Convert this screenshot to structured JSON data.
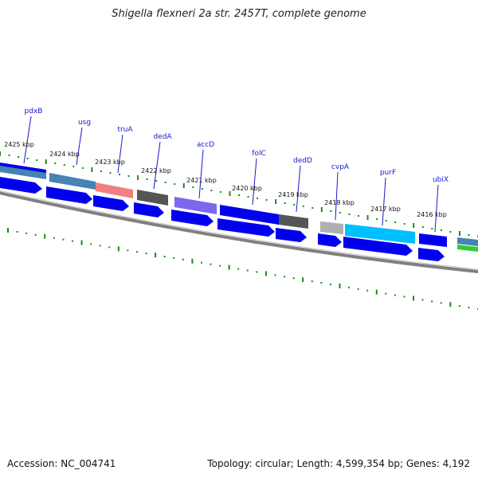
{
  "title": "Shigella flexneri 2a str. 2457T, complete genome",
  "footer": {
    "accession": "Accession: NC_004741",
    "summary": "Topology: circular; Length: 4,599,354 bp; Genes: 4,192"
  },
  "colors": {
    "cds": "#0000ee",
    "tick": "#1a8a1a",
    "backbone": "#808080",
    "label": "#1a1acc"
  },
  "kbp_labels": [
    "2425 kbp",
    "2424 kbp",
    "2423 kbp",
    "2422 kbp",
    "2421 kbp",
    "2420 kbp",
    "2419 kbp",
    "2418 kbp",
    "2417 kbp",
    "2416 kbp"
  ],
  "genes": [
    {
      "name": "pdxB",
      "color": "#4682b4"
    },
    {
      "name": "usg",
      "color": "#4682b4"
    },
    {
      "name": "truA",
      "color": "#f08080"
    },
    {
      "name": "dedA",
      "color": "#555555"
    },
    {
      "name": "accD",
      "color": "#7b68ee"
    },
    {
      "name": "folC",
      "color": "#0000ee"
    },
    {
      "name": "dedD",
      "color": "#555555"
    },
    {
      "name": "cvpA",
      "color": "#b0b0b0"
    },
    {
      "name": "purF",
      "color": "#00bfff"
    },
    {
      "name": "ubiX",
      "color": "#0000ee"
    }
  ]
}
